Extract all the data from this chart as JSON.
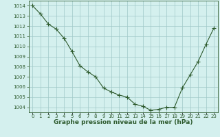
{
  "x": [
    0,
    1,
    2,
    3,
    4,
    5,
    6,
    7,
    8,
    9,
    10,
    11,
    12,
    13,
    14,
    15,
    16,
    17,
    18,
    19,
    20,
    21,
    22,
    23
  ],
  "y": [
    1014.0,
    1013.2,
    1012.2,
    1011.7,
    1010.8,
    1009.5,
    1008.1,
    1007.5,
    1007.0,
    1005.9,
    1005.5,
    1005.2,
    1005.0,
    1004.3,
    1004.1,
    1003.7,
    1003.8,
    1004.0,
    1004.0,
    1005.9,
    1007.2,
    1008.5,
    1010.2,
    1011.8
  ],
  "line_color": "#2d5a2d",
  "marker": "+",
  "marker_size": 4,
  "line_width": 0.8,
  "bg_color": "#d4f0ee",
  "grid_color": "#a0c8c8",
  "xlabel": "Graphe pression niveau de la mer (hPa)",
  "xlabel_color": "#2d5a2d",
  "xlabel_fontsize": 6.5,
  "xlabel_weight": "bold",
  "ylim_min": 1003.5,
  "ylim_max": 1014.5,
  "yticks": [
    1004,
    1005,
    1006,
    1007,
    1008,
    1009,
    1010,
    1011,
    1012,
    1013,
    1014
  ],
  "xtick_labels": [
    "0",
    "1",
    "2",
    "3",
    "4",
    "5",
    "6",
    "7",
    "8",
    "9",
    "10",
    "11",
    "12",
    "13",
    "14",
    "15",
    "16",
    "17",
    "18",
    "19",
    "20",
    "21",
    "22",
    "23"
  ],
  "tick_color": "#2d5a2d",
  "tick_fontsize": 5.0,
  "ytick_fontsize": 5.0,
  "spine_color": "#2d5a2d"
}
